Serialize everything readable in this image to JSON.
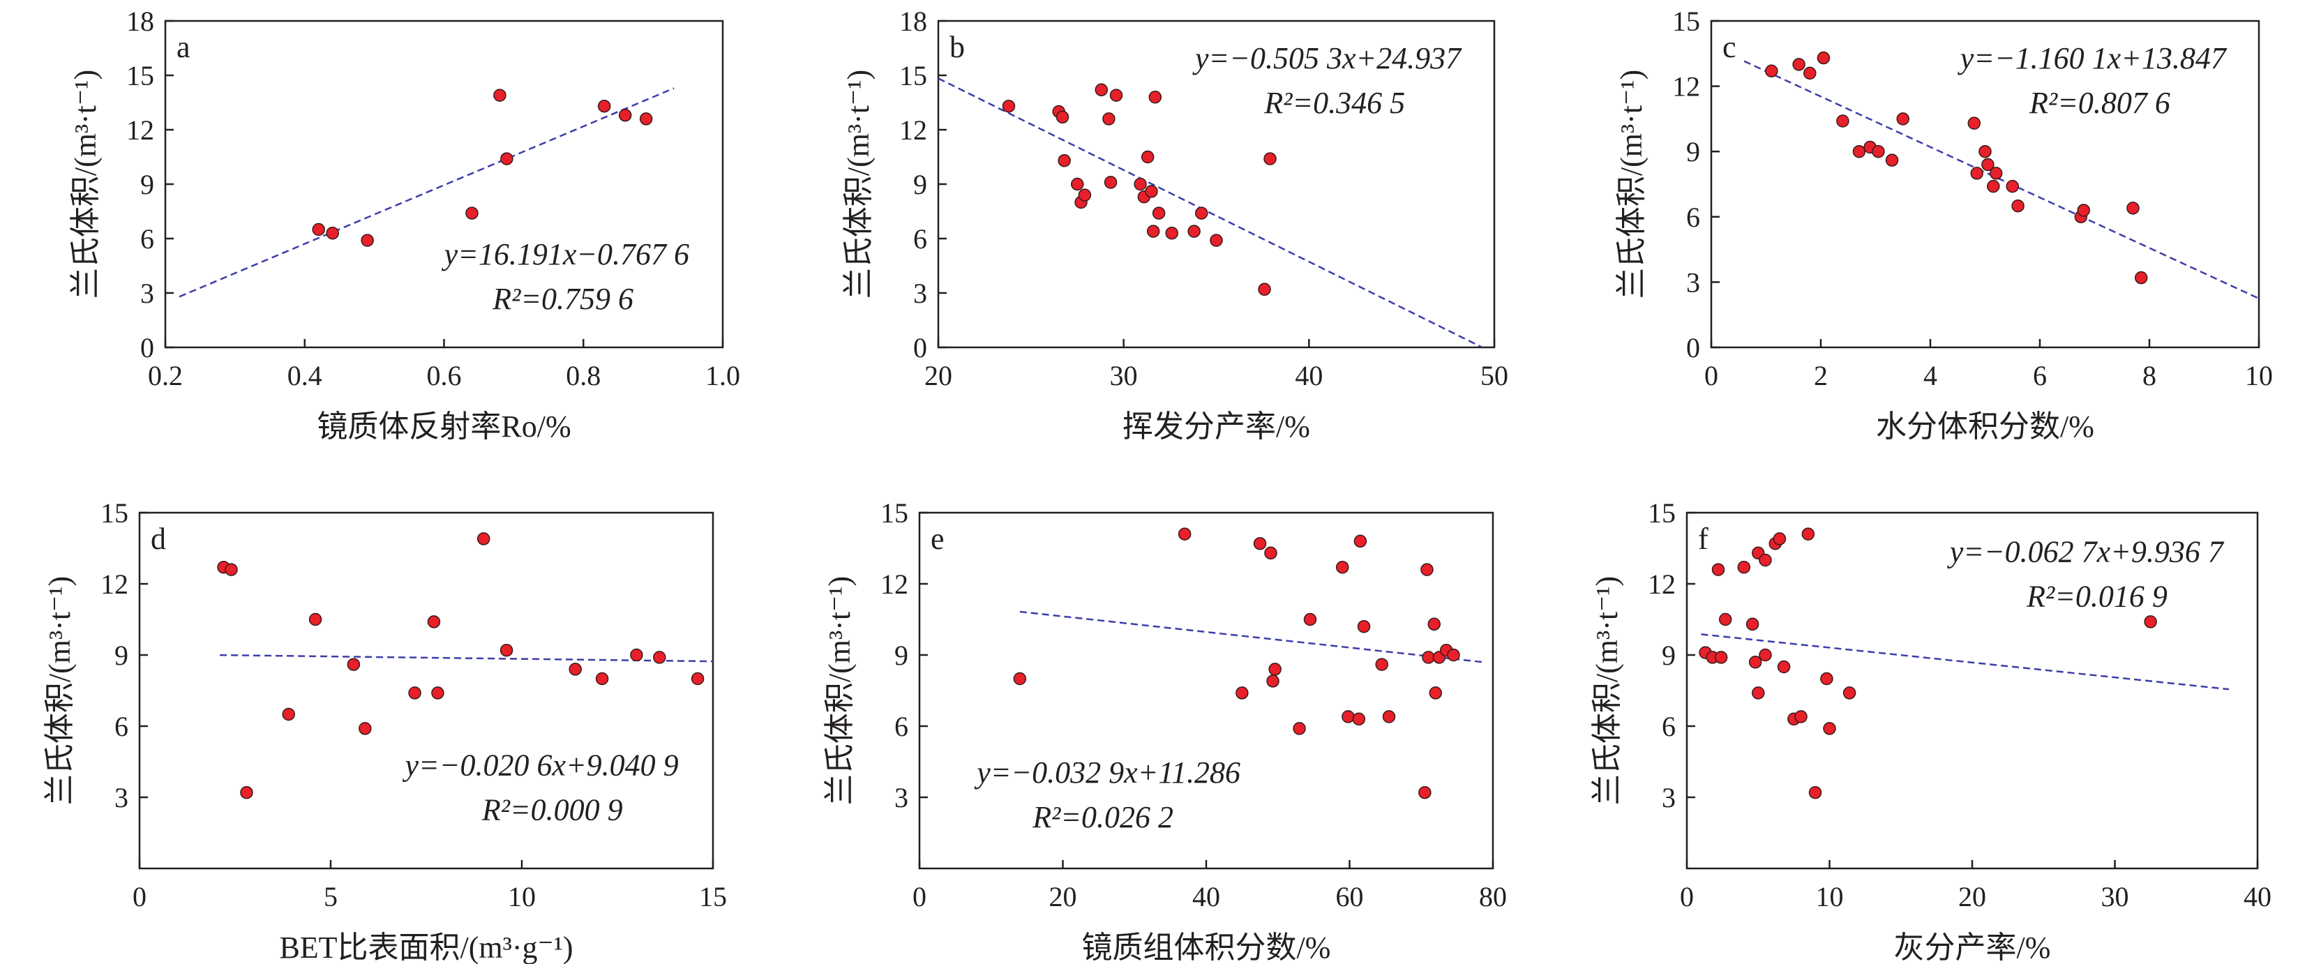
{
  "colors": {
    "point_fill": "#e8202a",
    "point_stroke": "#3a1a1a",
    "fit_line": "#3d3daa",
    "axis": "#231f20"
  },
  "chart_data": [
    {
      "type": "scatter",
      "panel_label": "a",
      "xlabel": "镜质体反射率Ro/%",
      "ylabel": "兰氏体积/(m³·t⁻¹)",
      "xlim": [
        0.2,
        1.0
      ],
      "ylim": [
        0,
        18
      ],
      "xticks": [
        "0.2",
        "0.4",
        "0.6",
        "0.8",
        "1.0"
      ],
      "yticks": [
        "0",
        "3",
        "6",
        "9",
        "12",
        "15",
        "18"
      ],
      "points": [
        [
          0.42,
          6.5
        ],
        [
          0.44,
          6.3
        ],
        [
          0.49,
          5.9
        ],
        [
          0.64,
          7.4
        ],
        [
          0.68,
          13.9
        ],
        [
          0.69,
          10.4
        ],
        [
          0.83,
          13.3
        ],
        [
          0.86,
          12.8
        ],
        [
          0.89,
          12.6
        ]
      ],
      "fit": {
        "slope": 16.191,
        "intercept": -0.7676,
        "x_range": [
          0.22,
          0.93
        ]
      },
      "equation": "y=16.191x−0.767 6",
      "r2": "R²=0.759 6",
      "legend_position": "bottom-right"
    },
    {
      "type": "scatter",
      "panel_label": "b",
      "xlabel": "挥发分产率/%",
      "ylabel": "兰氏体积/(m³·t⁻¹)",
      "xlim": [
        20,
        50
      ],
      "ylim": [
        0,
        18
      ],
      "xticks": [
        "20",
        "30",
        "40",
        "50"
      ],
      "yticks": [
        "0",
        "3",
        "6",
        "9",
        "12",
        "15",
        "18"
      ],
      "points": [
        [
          23.8,
          13.3
        ],
        [
          26.5,
          13.0
        ],
        [
          26.7,
          12.7
        ],
        [
          26.8,
          10.3
        ],
        [
          27.5,
          9.0
        ],
        [
          27.7,
          8.0
        ],
        [
          27.9,
          8.4
        ],
        [
          28.8,
          14.2
        ],
        [
          29.2,
          12.6
        ],
        [
          29.3,
          9.1
        ],
        [
          29.6,
          13.9
        ],
        [
          30.9,
          9.0
        ],
        [
          31.1,
          8.3
        ],
        [
          31.3,
          10.5
        ],
        [
          31.5,
          8.6
        ],
        [
          31.6,
          6.4
        ],
        [
          31.7,
          13.8
        ],
        [
          31.9,
          7.4
        ],
        [
          32.6,
          6.3
        ],
        [
          33.8,
          6.4
        ],
        [
          34.2,
          7.4
        ],
        [
          35.0,
          5.9
        ],
        [
          37.6,
          3.2
        ],
        [
          37.9,
          10.4
        ]
      ],
      "fit": {
        "slope": -0.5053,
        "intercept": 24.937,
        "x_range": [
          20.0,
          49.3
        ]
      },
      "equation": "y=−0.505 3x+24.937",
      "r2": "R²=0.346 5",
      "legend_position": "top-right"
    },
    {
      "type": "scatter",
      "panel_label": "c",
      "xlabel": "水分体积分数/%",
      "ylabel": "兰氏体积/(m³·t⁻¹)",
      "xlim": [
        0,
        10
      ],
      "ylim": [
        0,
        15
      ],
      "xticks": [
        "0",
        "2",
        "4",
        "6",
        "8",
        "10"
      ],
      "yticks": [
        "0",
        "3",
        "6",
        "9",
        "12",
        "15"
      ],
      "points": [
        [
          1.1,
          12.7
        ],
        [
          1.6,
          13.0
        ],
        [
          1.8,
          12.6
        ],
        [
          2.05,
          13.3
        ],
        [
          2.4,
          10.4
        ],
        [
          2.7,
          9.0
        ],
        [
          2.9,
          9.2
        ],
        [
          3.05,
          9.0
        ],
        [
          3.3,
          8.6
        ],
        [
          3.5,
          10.5
        ],
        [
          4.8,
          10.3
        ],
        [
          4.85,
          8.0
        ],
        [
          5.0,
          9.0
        ],
        [
          5.05,
          8.4
        ],
        [
          5.15,
          7.4
        ],
        [
          5.2,
          8.0
        ],
        [
          5.5,
          7.4
        ],
        [
          5.6,
          6.5
        ],
        [
          6.75,
          6.0
        ],
        [
          6.8,
          6.3
        ],
        [
          7.7,
          6.4
        ],
        [
          7.85,
          3.2
        ]
      ],
      "fit": {
        "slope": -1.1601,
        "intercept": 13.847,
        "x_range": [
          0.6,
          10.0
        ]
      },
      "equation": "y=−1.160 1x+13.847",
      "r2": "R²=0.807 6",
      "legend_position": "top-right"
    },
    {
      "type": "scatter",
      "panel_label": "d",
      "xlabel": "BET比表面积/(m³·g⁻¹)",
      "ylabel": "兰氏体积/(m³·t⁻¹)",
      "xlim": [
        0,
        15
      ],
      "ylim": [
        0,
        15
      ],
      "xticks": [
        "0",
        "5",
        "10",
        "15"
      ],
      "yticks": [
        "3",
        "6",
        "9",
        "12",
        "15"
      ],
      "points": [
        [
          2.2,
          12.7
        ],
        [
          2.4,
          12.6
        ],
        [
          2.8,
          3.2
        ],
        [
          3.9,
          6.5
        ],
        [
          4.6,
          10.5
        ],
        [
          5.6,
          8.6
        ],
        [
          5.9,
          5.9
        ],
        [
          7.2,
          7.4
        ],
        [
          7.7,
          10.4
        ],
        [
          7.8,
          7.4
        ],
        [
          9.0,
          13.9
        ],
        [
          9.6,
          9.2
        ],
        [
          11.4,
          8.4
        ],
        [
          12.1,
          8.0
        ],
        [
          13.0,
          9.0
        ],
        [
          13.6,
          8.9
        ],
        [
          14.6,
          8.0
        ]
      ],
      "fit": {
        "slope": -0.0206,
        "intercept": 9.0409,
        "x_range": [
          2.1,
          15.0
        ]
      },
      "equation": "y=−0.020 6x+9.040 9",
      "r2": "R²=0.000 9",
      "legend_position": "bottom-right"
    },
    {
      "type": "scatter",
      "panel_label": "e",
      "xlabel": "镜质组体积分数/%",
      "ylabel": "兰氏体积/(m³·t⁻¹)",
      "xlim": [
        0,
        80
      ],
      "ylim": [
        0,
        15
      ],
      "xticks": [
        "0",
        "20",
        "40",
        "60",
        "80"
      ],
      "yticks": [
        "3",
        "6",
        "9",
        "12",
        "15"
      ],
      "points": [
        [
          14,
          8.0
        ],
        [
          37,
          14.1
        ],
        [
          45,
          7.4
        ],
        [
          47.5,
          13.7
        ],
        [
          49,
          13.3
        ],
        [
          49.3,
          7.9
        ],
        [
          49.6,
          8.4
        ],
        [
          53,
          5.9
        ],
        [
          54.5,
          10.5
        ],
        [
          59,
          12.7
        ],
        [
          59.8,
          6.4
        ],
        [
          61.3,
          6.3
        ],
        [
          61.5,
          13.8
        ],
        [
          62,
          10.2
        ],
        [
          64.5,
          8.6
        ],
        [
          65.5,
          6.4
        ],
        [
          70.5,
          3.2
        ],
        [
          70.8,
          12.6
        ],
        [
          71,
          8.9
        ],
        [
          71.8,
          10.3
        ],
        [
          72,
          7.4
        ],
        [
          72.5,
          8.9
        ],
        [
          73.5,
          9.2
        ],
        [
          74.5,
          9.0
        ]
      ],
      "fit": {
        "slope": -0.0329,
        "intercept": 11.286,
        "x_range": [
          14.0,
          79.0
        ]
      },
      "equation": "y=−0.032 9x+11.286",
      "r2": "R²=0.026 2",
      "legend_position": "bottom-left"
    },
    {
      "type": "scatter",
      "panel_label": "f",
      "xlabel": "灰分产率/%",
      "ylabel": "兰氏体积/(m³·t⁻¹)",
      "xlim": [
        0,
        40
      ],
      "ylim": [
        0,
        15
      ],
      "xticks": [
        "0",
        "10",
        "20",
        "30",
        "40"
      ],
      "yticks": [
        "3",
        "6",
        "9",
        "12",
        "15"
      ],
      "points": [
        [
          1.3,
          9.1
        ],
        [
          1.8,
          8.9
        ],
        [
          2.2,
          12.6
        ],
        [
          2.4,
          8.9
        ],
        [
          2.7,
          10.5
        ],
        [
          4.0,
          12.7
        ],
        [
          4.6,
          10.3
        ],
        [
          4.8,
          8.7
        ],
        [
          5.0,
          13.3
        ],
        [
          5.0,
          7.4
        ],
        [
          5.5,
          13.0
        ],
        [
          5.5,
          9.0
        ],
        [
          6.2,
          13.7
        ],
        [
          6.5,
          13.9
        ],
        [
          6.8,
          8.5
        ],
        [
          7.5,
          6.3
        ],
        [
          8.0,
          6.4
        ],
        [
          8.5,
          14.1
        ],
        [
          9.0,
          3.2
        ],
        [
          9.8,
          8.0
        ],
        [
          10.0,
          5.9
        ],
        [
          11.4,
          7.4
        ],
        [
          32.5,
          10.4
        ]
      ],
      "fit": {
        "slope": -0.0627,
        "intercept": 9.9367,
        "x_range": [
          1.0,
          38.0
        ]
      },
      "equation": "y=−0.062 7x+9.936 7",
      "r2": "R²=0.016 9",
      "legend_position": "top-right"
    }
  ]
}
